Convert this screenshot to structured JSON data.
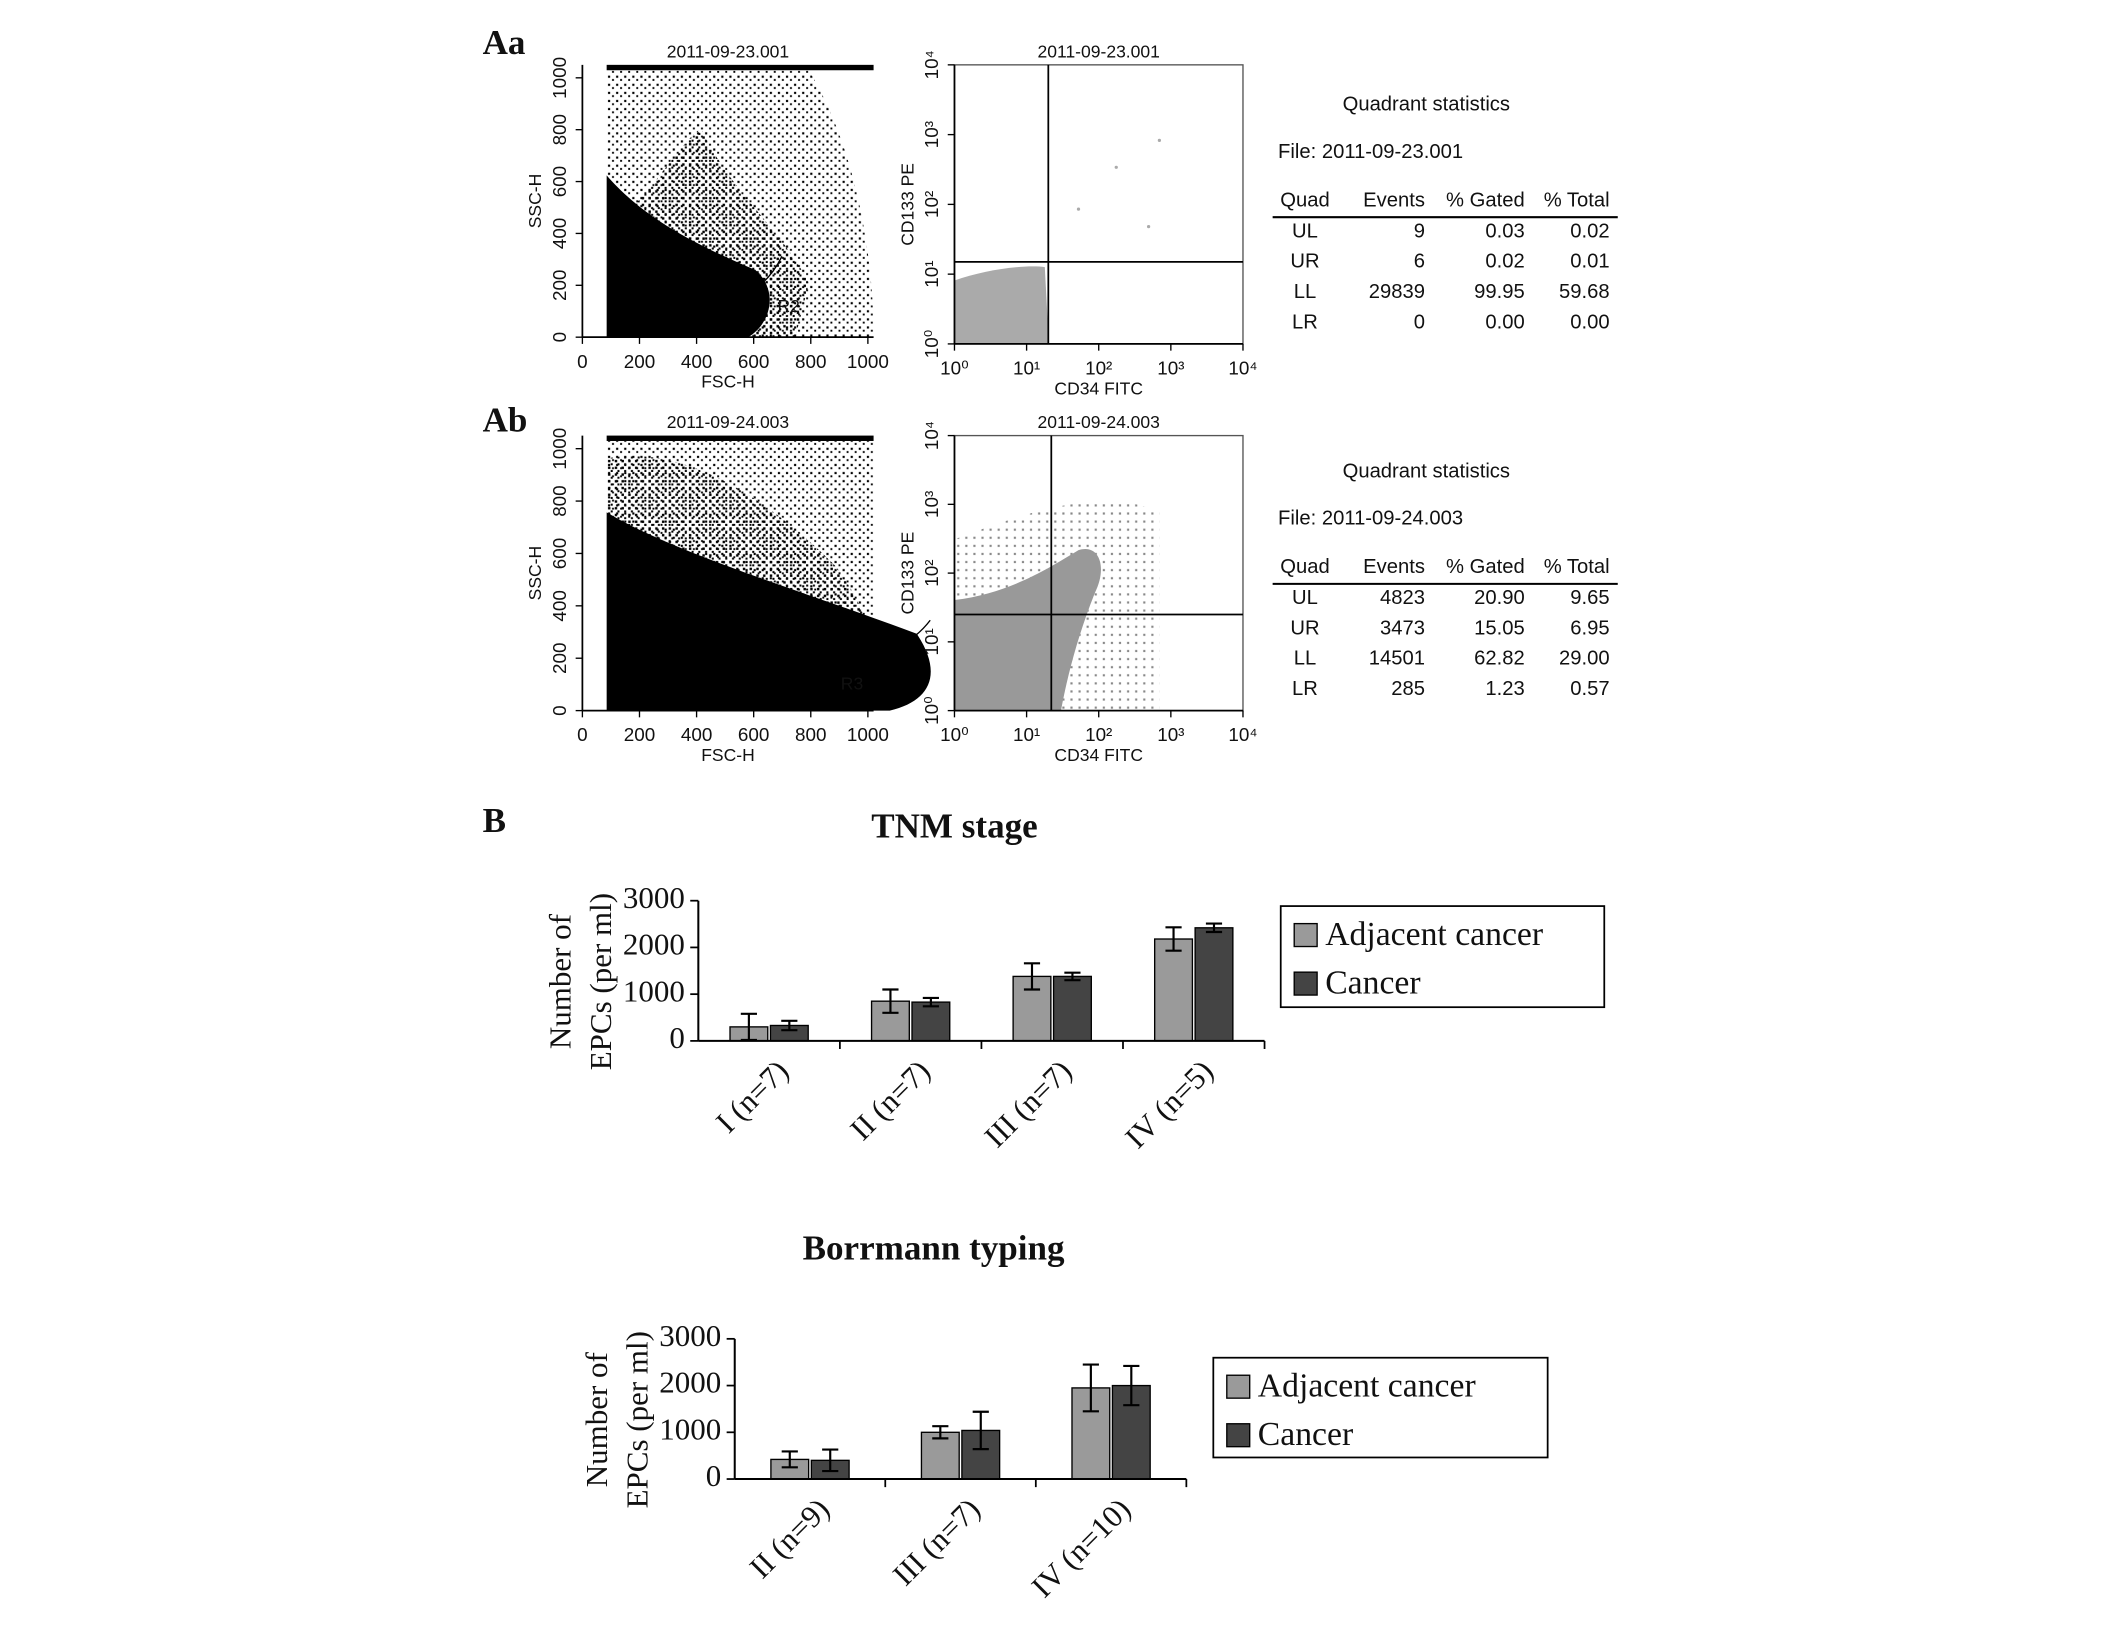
{
  "panel_labels": [
    "Aa",
    "Ab",
    "B"
  ],
  "tables": [
    {
      "title": "Quadrant statistics",
      "file": "File: 2011-09-23.001",
      "header": [
        "Quad",
        "Events",
        "% Gated",
        "% Total"
      ],
      "rows": [
        [
          "UL",
          "9",
          "0.03",
          "0.02"
        ],
        [
          "UR",
          "6",
          "0.02",
          "0.01"
        ],
        [
          "LL",
          "29839",
          "99.95",
          "59.68"
        ],
        [
          "LR",
          "0",
          "0.00",
          "0.00"
        ]
      ]
    },
    {
      "title": "Quadrant statistics",
      "file": "File: 2011-09-24.003",
      "header": [
        "Quad",
        "Events",
        "% Gated",
        "% Total"
      ],
      "rows": [
        [
          "UL",
          "4823",
          "20.90",
          "9.65"
        ],
        [
          "UR",
          "3473",
          "15.05",
          "6.95"
        ],
        [
          "LL",
          "14501",
          "62.82",
          "29.00"
        ],
        [
          "LR",
          "285",
          "1.23",
          "0.57"
        ]
      ]
    }
  ],
  "chart_data": [
    {
      "type": "scatter",
      "title": "2011-09-23.001",
      "xlabel": "FSC-H",
      "ylabel": "SSC-H",
      "gate": "R2",
      "xlim": [
        0,
        1020
      ],
      "xticks": [
        0,
        200,
        400,
        600,
        800,
        1000
      ],
      "ylim": [
        0,
        1050
      ],
      "yticks": [
        0,
        200,
        400,
        600,
        800,
        1000
      ]
    },
    {
      "type": "scatter",
      "title": "2011-09-23.001",
      "xlabel": "CD34 FITC",
      "ylabel": "CD133 PE",
      "log": true,
      "xlim": [
        1,
        10000
      ],
      "xticks": [
        {
          "value": 1,
          "label": "10⁰"
        },
        {
          "value": 10,
          "label": "10¹"
        },
        {
          "value": 100,
          "label": "10²"
        },
        {
          "value": 1000,
          "label": "10³"
        },
        {
          "value": 10000,
          "label": "10⁴"
        }
      ],
      "ylim": [
        1,
        10000
      ],
      "yticks": [
        {
          "value": 1,
          "label": "10⁰"
        },
        {
          "value": 10,
          "label": "10¹"
        },
        {
          "value": 100,
          "label": "10²"
        },
        {
          "value": 1000,
          "label": "10³"
        },
        {
          "value": 10000,
          "label": "10⁴"
        }
      ],
      "quadrant_x": 20,
      "quadrant_y": 15
    },
    {
      "type": "scatter",
      "title": "2011-09-24.003",
      "xlabel": "FSC-H",
      "ylabel": "SSC-H",
      "gate": "R3",
      "xlim": [
        0,
        1020
      ],
      "xticks": [
        0,
        200,
        400,
        600,
        800,
        1000
      ],
      "ylim": [
        0,
        1050
      ],
      "yticks": [
        0,
        200,
        400,
        600,
        800,
        1000
      ]
    },
    {
      "type": "scatter",
      "title": "2011-09-24.003",
      "xlabel": "CD34 FITC",
      "ylabel": "CD133 PE",
      "log": true,
      "xlim": [
        1,
        10000
      ],
      "xticks": [
        {
          "value": 1,
          "label": "10⁰"
        },
        {
          "value": 10,
          "label": "10¹"
        },
        {
          "value": 100,
          "label": "10²"
        },
        {
          "value": 1000,
          "label": "10³"
        },
        {
          "value": 10000,
          "label": "10⁴"
        }
      ],
      "ylim": [
        1,
        10000
      ],
      "yticks": [
        {
          "value": 1,
          "label": "10⁰"
        },
        {
          "value": 10,
          "label": "10¹"
        },
        {
          "value": 100,
          "label": "10²"
        },
        {
          "value": 1000,
          "label": "10³"
        },
        {
          "value": 10000,
          "label": "10⁴"
        }
      ],
      "quadrant_x": 22,
      "quadrant_y": 25
    },
    {
      "type": "bar",
      "title": "TNM stage",
      "ylabel": [
        "Number of",
        "EPCs (per ml)"
      ],
      "categories": [
        "I (n=7)",
        "II (n=7)",
        "III (n=7)",
        "IV (n=5)"
      ],
      "series": [
        {
          "name": "Adjacent cancer",
          "color": "#9a9a9a",
          "values": [
            300,
            850,
            1380,
            2180
          ],
          "errors": [
            280,
            250,
            280,
            250
          ]
        },
        {
          "name": "Cancer",
          "color": "#444444",
          "values": [
            330,
            830,
            1380,
            2420
          ],
          "errors": [
            100,
            90,
            80,
            90
          ]
        }
      ],
      "ylim": [
        0,
        3000
      ],
      "yticks": [
        0,
        1000,
        2000,
        3000
      ]
    },
    {
      "type": "bar",
      "title": "Borrmann typing",
      "ylabel": [
        "Number of",
        "EPCs (per ml)"
      ],
      "categories": [
        "II (n=9)",
        "III (n=7)",
        "IV (n=10)"
      ],
      "series": [
        {
          "name": "Adjacent cancer",
          "color": "#9a9a9a",
          "values": [
            420,
            1000,
            1950
          ],
          "errors": [
            170,
            130,
            500
          ]
        },
        {
          "name": "Cancer",
          "color": "#444444",
          "values": [
            400,
            1040,
            2000
          ],
          "errors": [
            230,
            400,
            420
          ]
        }
      ],
      "ylim": [
        0,
        3000
      ],
      "yticks": [
        0,
        1000,
        2000,
        3000
      ]
    }
  ]
}
